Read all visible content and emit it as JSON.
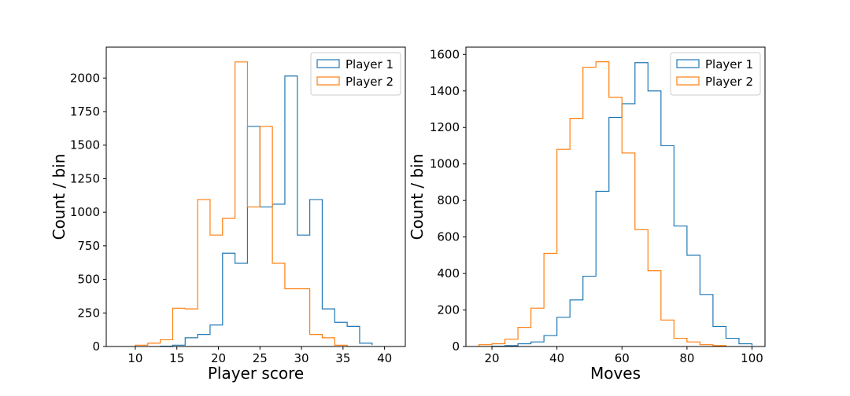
{
  "chart_data": [
    {
      "type": "histogram",
      "title": "",
      "xlabel": "Player score",
      "ylabel": "Count / bin",
      "xlim": [
        6.5,
        42.5
      ],
      "ylim": [
        0,
        2230
      ],
      "xticks": [
        10,
        15,
        20,
        25,
        30,
        35,
        40
      ],
      "yticks": [
        0,
        250,
        500,
        750,
        1000,
        1250,
        1500,
        1750,
        2000
      ],
      "grid": false,
      "legend_position": "upper-right",
      "series": [
        {
          "name": "Player 1",
          "color": "#1f77b4",
          "edges": [
            13,
            14.5,
            16,
            17.5,
            19,
            20.5,
            22,
            23.5,
            25,
            26.5,
            28,
            29.5,
            31,
            32.5,
            34,
            35.5,
            37,
            38.5
          ],
          "counts": [
            2,
            10,
            65,
            90,
            160,
            695,
            620,
            1640,
            1040,
            1060,
            2015,
            830,
            1095,
            280,
            180,
            150,
            25,
            10
          ]
        },
        {
          "name": "Player 2",
          "color": "#ff7f0e",
          "edges": [
            10,
            11.5,
            13,
            14.5,
            16,
            17.5,
            19,
            20.5,
            22,
            23.5,
            25,
            26.5,
            28,
            29.5,
            31,
            32.5,
            34,
            35.5
          ],
          "counts": [
            10,
            25,
            50,
            285,
            280,
            1095,
            830,
            955,
            2120,
            1040,
            1640,
            620,
            430,
            430,
            90,
            65,
            10,
            2
          ]
        }
      ]
    },
    {
      "type": "histogram",
      "title": "",
      "xlabel": "Moves",
      "ylabel": "Count / bin",
      "xlim": [
        12,
        104
      ],
      "ylim": [
        0,
        1640
      ],
      "xticks": [
        20,
        40,
        60,
        80,
        100
      ],
      "yticks": [
        0,
        200,
        400,
        600,
        800,
        1000,
        1200,
        1400,
        1600
      ],
      "grid": false,
      "legend_position": "upper-right",
      "series": [
        {
          "name": "Player 1",
          "color": "#1f77b4",
          "edges": [
            20,
            24,
            28,
            32,
            36,
            40,
            44,
            48,
            52,
            56,
            60,
            64,
            68,
            72,
            76,
            80,
            84,
            88,
            92,
            96,
            100
          ],
          "counts": [
            2,
            5,
            15,
            25,
            60,
            160,
            255,
            385,
            850,
            1255,
            1330,
            1555,
            1400,
            1100,
            660,
            500,
            285,
            110,
            45,
            15,
            5
          ]
        },
        {
          "name": "Player 2",
          "color": "#ff7f0e",
          "edges": [
            16,
            20,
            24,
            28,
            32,
            36,
            40,
            44,
            48,
            52,
            56,
            60,
            64,
            68,
            72,
            76,
            80,
            84,
            88,
            92
          ],
          "counts": [
            10,
            15,
            40,
            105,
            210,
            510,
            1080,
            1250,
            1530,
            1560,
            1365,
            1060,
            640,
            415,
            145,
            45,
            25,
            10,
            5
          ]
        }
      ]
    }
  ]
}
